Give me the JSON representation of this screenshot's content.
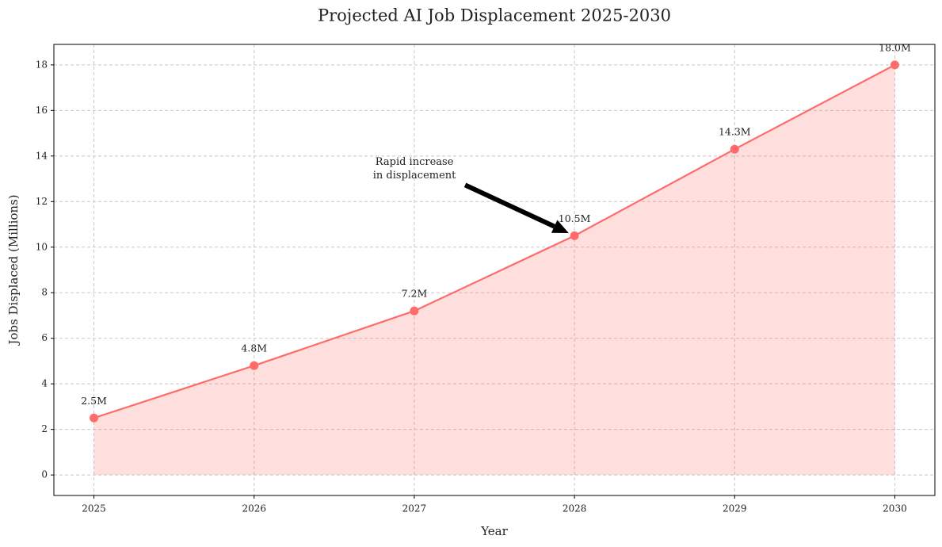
{
  "chart_data": {
    "type": "line",
    "title": "Projected AI Job Displacement 2025-2030",
    "x_label": "Year",
    "y_label": "Jobs Displaced (Millions)",
    "x": [
      2025,
      2026,
      2027,
      2028,
      2029,
      2030
    ],
    "values": [
      2.5,
      4.8,
      7.2,
      10.5,
      14.3,
      18.0
    ],
    "value_labels": [
      "2.5M",
      "4.8M",
      "7.2M",
      "10.5M",
      "14.3M",
      "18.0M"
    ],
    "color": "#ff6b6b",
    "fill": true,
    "xlim": [
      2024.75,
      2030.25
    ],
    "xticks": [
      2025,
      2026,
      2027,
      2028,
      2029,
      2030
    ],
    "ylim": [
      -0.9,
      18.9
    ],
    "yticks": [
      0,
      2,
      4,
      6,
      8,
      10,
      12,
      14,
      16,
      18
    ],
    "grid": true,
    "annotation": [
      "Rapid increase",
      "in displacement"
    ]
  }
}
